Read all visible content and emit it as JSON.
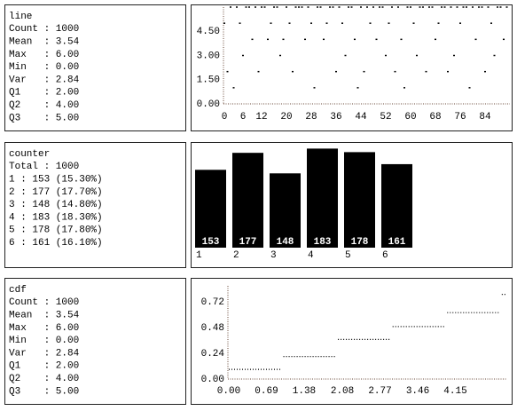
{
  "panels": [
    {
      "stats": {
        "title": "line",
        "lines": [
          "Count : 1000",
          "Mean  : 3.54",
          "Max   : 6.00",
          "Min   : 0.00",
          "Var   : 2.84",
          "Q1    : 2.00",
          "Q2    : 4.00",
          "Q3    : 5.00"
        ]
      },
      "chart": {
        "type": "scatter",
        "color": "#000000",
        "x": [
          0,
          1,
          2,
          3,
          4,
          5,
          6,
          7,
          8,
          9,
          10,
          11,
          12,
          13,
          14,
          15,
          16,
          17,
          18,
          19,
          20,
          21,
          22,
          23,
          24,
          25,
          26,
          27,
          28,
          29,
          30,
          31,
          32,
          33,
          34,
          35,
          36,
          37,
          38,
          39,
          40,
          41,
          42,
          43,
          44,
          45,
          46,
          47,
          48,
          49,
          50,
          51,
          52,
          53,
          54,
          55,
          56,
          57,
          58,
          59,
          60,
          61,
          62,
          63,
          64,
          65,
          66,
          67,
          68,
          69,
          70,
          71,
          72,
          73,
          74,
          75,
          76,
          77,
          78,
          79,
          80,
          81,
          82,
          83,
          84,
          85,
          86,
          87,
          88,
          89,
          90,
          91
        ],
        "y": [
          5,
          2,
          6,
          1,
          6,
          5,
          3,
          6,
          6,
          4,
          6,
          2,
          6,
          6,
          4,
          5,
          6,
          6,
          3,
          4,
          6,
          5,
          2,
          6,
          6,
          6,
          4,
          6,
          5,
          1,
          6,
          6,
          4,
          5,
          6,
          6,
          2,
          6,
          5,
          3,
          6,
          6,
          4,
          1,
          6,
          2,
          6,
          5,
          6,
          4,
          6,
          6,
          3,
          5,
          6,
          2,
          6,
          4,
          1,
          6,
          6,
          5,
          3,
          6,
          6,
          2,
          6,
          6,
          4,
          5,
          6,
          6,
          2,
          6,
          3,
          6,
          5,
          6,
          6,
          1,
          6,
          4,
          6,
          6,
          2,
          6,
          5,
          3,
          6,
          6,
          4,
          6
        ],
        "xlim": [
          0,
          92
        ],
        "ylim": [
          0,
          6
        ],
        "xticks": [
          0,
          6,
          12,
          20,
          28,
          36,
          44,
          52,
          60,
          68,
          76,
          84
        ],
        "yticks": [
          {
            "value": 0,
            "label": "0.00"
          },
          {
            "value": 1.5,
            "label": "1.50"
          },
          {
            "value": 3,
            "label": "3.00"
          },
          {
            "value": 4.5,
            "label": "4.50"
          }
        ]
      }
    },
    {
      "stats": {
        "title": "counter",
        "lines": [
          "Total : 1000",
          "1 : 153 (15.30%)",
          "2 : 177 (17.70%)",
          "3 : 148 (14.80%)",
          "4 : 183 (18.30%)",
          "5 : 178 (17.80%)",
          "6 : 161 (16.10%)"
        ]
      },
      "chart": {
        "type": "bar",
        "color": "#000000",
        "categories": [
          "1",
          "2",
          "3",
          "4",
          "5",
          "6"
        ],
        "values": [
          153,
          177,
          148,
          183,
          178,
          161
        ],
        "ylim": [
          43,
          186
        ]
      }
    },
    {
      "stats": {
        "title": "cdf",
        "lines": [
          "Count : 1000",
          "Mean  : 3.54",
          "Max   : 6.00",
          "Min   : 0.00",
          "Var   : 2.84",
          "Q1    : 2.00",
          "Q2    : 4.00",
          "Q3    : 5.00"
        ]
      },
      "chart": {
        "type": "step",
        "color": "#000000",
        "x": [
          0,
          1,
          2,
          3,
          4,
          5
        ],
        "y": [
          0.09,
          0.21,
          0.37,
          0.49,
          0.62,
          0.79
        ],
        "xlim": [
          0,
          5.1
        ],
        "ylim": [
          0,
          0.87
        ],
        "xticks": [
          {
            "value": 0,
            "label": "0.00"
          },
          0.69,
          1.38,
          2.08,
          2.77,
          3.46,
          4.15
        ],
        "yticks": [
          {
            "value": 0,
            "label": "0.00"
          },
          0.24,
          0.48,
          0.72
        ]
      }
    }
  ]
}
